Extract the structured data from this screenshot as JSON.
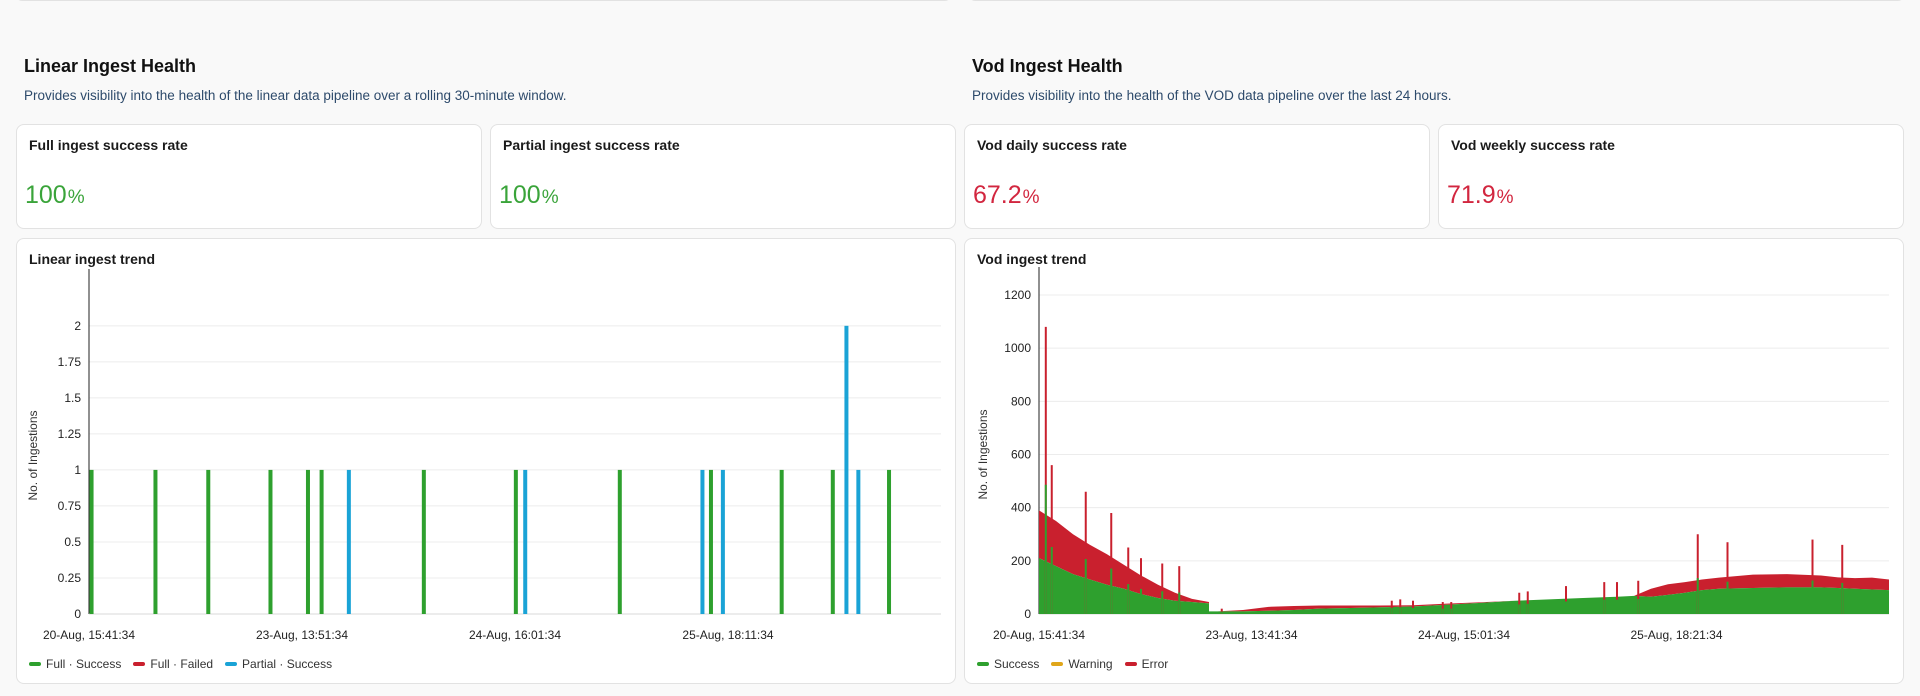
{
  "linear": {
    "title": "Linear Ingest Health",
    "description": "Provides visibility into the health of the linear data pipeline over a rolling 30-minute window.",
    "stats": [
      {
        "label": "Full ingest success rate",
        "value": "100",
        "unit": "%",
        "color": "#3aa43a"
      },
      {
        "label": "Partial ingest success rate",
        "value": "100",
        "unit": "%",
        "color": "#3aa43a"
      }
    ],
    "trend_title": "Linear ingest trend",
    "legend": [
      {
        "label": "Full · Success",
        "color": "#2ea02e"
      },
      {
        "label": "Full · Failed",
        "color": "#c9202e"
      },
      {
        "label": "Partial · Success",
        "color": "#1aa3d6"
      }
    ]
  },
  "vod": {
    "title": "Vod Ingest Health",
    "description": "Provides visibility into the health of the VOD data pipeline over the last 24 hours.",
    "stats": [
      {
        "label": "Vod daily success rate",
        "value": "67.2",
        "unit": "%",
        "color": "#d2263f"
      },
      {
        "label": "Vod weekly success rate",
        "value": "71.9",
        "unit": "%",
        "color": "#d2263f"
      }
    ],
    "trend_title": "Vod ingest trend",
    "legend": [
      {
        "label": "Success",
        "color": "#2ea02e"
      },
      {
        "label": "Warning",
        "color": "#e0a61a"
      },
      {
        "label": "Error",
        "color": "#c9202e"
      }
    ]
  },
  "chart_data": [
    {
      "type": "bar",
      "title": "Linear ingest trend",
      "ylabel": "No. of Ingestions",
      "xlabel": "",
      "ylim": [
        0,
        2.2
      ],
      "yticks": [
        "0",
        "0.25",
        "0.5",
        "0.75",
        "1",
        "1.25",
        "1.5",
        "1.75",
        "2"
      ],
      "xticks": [
        "20-Aug, 15:41:34",
        "23-Aug, 13:51:34",
        "24-Aug, 16:01:34",
        "25-Aug, 18:11:34"
      ],
      "xtick_fractions": [
        0.0,
        0.25,
        0.5,
        0.75
      ],
      "series": [
        {
          "name": "Full · Success",
          "color": "#2ea02e",
          "x_fraction": [
            0.003,
            0.078,
            0.14,
            0.213,
            0.257,
            0.273,
            0.393,
            0.501,
            0.623,
            0.73,
            0.813,
            0.873,
            0.939
          ],
          "values": [
            1,
            1,
            1,
            1,
            1,
            1,
            1,
            1,
            1,
            1,
            1,
            1,
            1
          ]
        },
        {
          "name": "Full · Failed",
          "color": "#c9202e",
          "x_fraction": [],
          "values": []
        },
        {
          "name": "Partial · Success",
          "color": "#1aa3d6",
          "x_fraction": [
            0.305,
            0.512,
            0.72,
            0.744,
            0.889,
            0.903
          ],
          "values": [
            1,
            1,
            1,
            1,
            2,
            1
          ]
        }
      ]
    },
    {
      "type": "area",
      "title": "Vod ingest trend",
      "ylabel": "No. of Ingestions",
      "xlabel": "",
      "ylim": [
        0,
        1200
      ],
      "yticks": [
        "0",
        "200",
        "400",
        "600",
        "800",
        "1000",
        "1200"
      ],
      "xticks": [
        "20-Aug, 15:41:34",
        "23-Aug, 13:41:34",
        "24-Aug, 15:01:34",
        "25-Aug, 18:21:34"
      ],
      "xtick_fractions": [
        0.0,
        0.25,
        0.5,
        0.75
      ],
      "x_fraction": [
        0,
        0.02,
        0.04,
        0.06,
        0.08,
        0.1,
        0.12,
        0.14,
        0.16,
        0.18,
        0.2,
        0.2,
        0.21,
        0.24,
        0.27,
        0.3,
        0.33,
        0.36,
        0.4,
        0.44,
        0.48,
        0.52,
        0.56,
        0.6,
        0.64,
        0.68,
        0.7,
        0.72,
        0.74,
        0.76,
        0.78,
        0.8,
        0.84,
        0.88,
        0.92,
        0.94,
        0.96,
        0.98,
        1.0
      ],
      "series": [
        {
          "name": "Success",
          "color": "#2ea02e",
          "values": [
            210,
            180,
            150,
            130,
            110,
            95,
            75,
            60,
            50,
            45,
            40,
            10,
            10,
            10,
            12,
            15,
            20,
            22,
            25,
            28,
            35,
            42,
            50,
            55,
            60,
            65,
            68,
            65,
            72,
            80,
            90,
            95,
            98,
            100,
            100,
            98,
            95,
            92,
            90
          ]
        },
        {
          "name": "Warning",
          "color": "#e0a61a",
          "values": [
            0,
            0,
            0,
            0,
            0,
            0,
            0,
            0,
            0,
            0,
            0,
            0,
            0,
            0,
            0,
            0,
            0,
            0,
            0,
            0,
            0,
            0,
            0,
            0,
            0,
            0,
            0,
            0,
            0,
            0,
            0,
            0,
            0,
            0,
            0,
            0,
            0,
            0,
            0
          ]
        },
        {
          "name": "Error",
          "color": "#c9202e",
          "values": [
            180,
            170,
            150,
            130,
            115,
            90,
            70,
            50,
            30,
            12,
            5,
            0,
            0,
            5,
            15,
            15,
            12,
            10,
            7,
            5,
            4,
            2,
            0,
            0,
            0,
            0,
            0,
            30,
            40,
            40,
            40,
            42,
            50,
            50,
            45,
            40,
            40,
            45,
            40
          ]
        }
      ],
      "spikes": [
        {
          "x_fraction": 0.008,
          "value": 1080
        },
        {
          "x_fraction": 0.015,
          "value": 560
        },
        {
          "x_fraction": 0.055,
          "value": 460
        },
        {
          "x_fraction": 0.085,
          "value": 380
        },
        {
          "x_fraction": 0.105,
          "value": 250
        },
        {
          "x_fraction": 0.12,
          "value": 210
        },
        {
          "x_fraction": 0.145,
          "value": 190
        },
        {
          "x_fraction": 0.165,
          "value": 180
        },
        {
          "x_fraction": 0.215,
          "value": 20
        },
        {
          "x_fraction": 0.415,
          "value": 50
        },
        {
          "x_fraction": 0.425,
          "value": 55
        },
        {
          "x_fraction": 0.44,
          "value": 50
        },
        {
          "x_fraction": 0.475,
          "value": 45
        },
        {
          "x_fraction": 0.485,
          "value": 45
        },
        {
          "x_fraction": 0.565,
          "value": 80
        },
        {
          "x_fraction": 0.575,
          "value": 85
        },
        {
          "x_fraction": 0.62,
          "value": 105
        },
        {
          "x_fraction": 0.665,
          "value": 120
        },
        {
          "x_fraction": 0.68,
          "value": 120
        },
        {
          "x_fraction": 0.705,
          "value": 125
        },
        {
          "x_fraction": 0.775,
          "value": 300
        },
        {
          "x_fraction": 0.81,
          "value": 270
        },
        {
          "x_fraction": 0.91,
          "value": 280
        },
        {
          "x_fraction": 0.945,
          "value": 260
        }
      ]
    }
  ]
}
